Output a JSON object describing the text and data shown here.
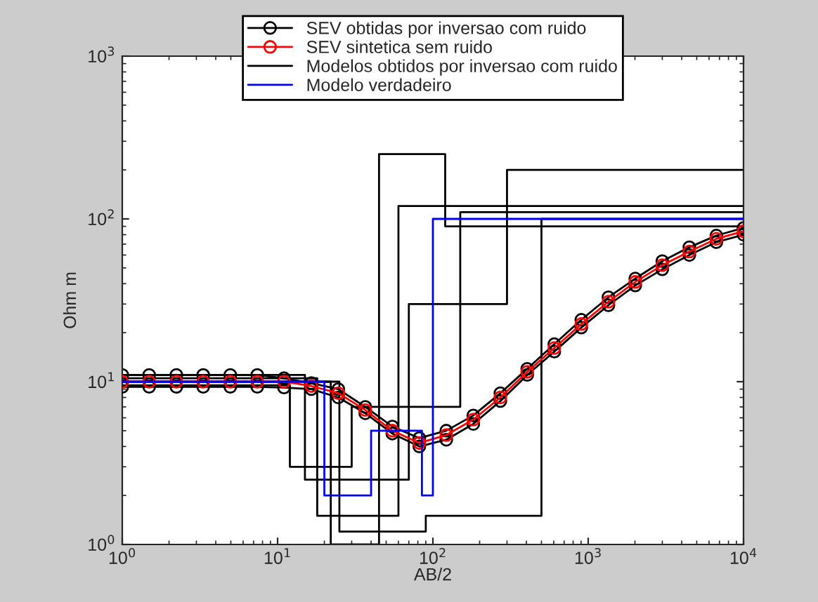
{
  "chart_data": {
    "type": "line",
    "xlabel": "AB/2",
    "ylabel": "Ohm m",
    "log": "xy",
    "grid": false,
    "legend": "top",
    "xlim": [
      1,
      10000
    ],
    "ylim": [
      1,
      1000
    ],
    "xticks": [
      {
        "value": 1,
        "label": "10$^{0}$"
      },
      {
        "value": 10,
        "label": "10$^{1}$"
      },
      {
        "value": 100,
        "label": "10$^{2}$"
      },
      {
        "value": 1000,
        "label": "10$^{3}$"
      },
      {
        "value": 10000,
        "label": "10$^{4}$"
      }
    ],
    "yticks": [
      {
        "value": 1,
        "label": "10$^{0}$"
      },
      {
        "value": 10,
        "label": "10$^{1}$"
      },
      {
        "value": 100,
        "label": "10$^{2}$"
      },
      {
        "value": 1000,
        "label": "10$^{3}$"
      }
    ],
    "series": [
      {
        "name": "Modelos obtidos por inversao com ruido",
        "type": "step",
        "color": "#000000",
        "x": [
          1,
          18,
          60,
          10000
        ],
        "values": [
          10.5,
          1.5,
          120,
          120
        ]
      },
      {
        "type": "step",
        "color": "#000000",
        "x": [
          1,
          12,
          30,
          150,
          10000
        ],
        "values": [
          9.5,
          3,
          7,
          110,
          110
        ]
      },
      {
        "type": "step",
        "color": "#000000",
        "x": [
          1,
          22,
          45,
          120,
          10000
        ],
        "values": [
          10,
          1,
          250,
          90,
          90
        ]
      },
      {
        "type": "step",
        "color": "#000000",
        "x": [
          1,
          15,
          70,
          300,
          10000
        ],
        "values": [
          11,
          2.5,
          30,
          200,
          200
        ]
      },
      {
        "type": "step",
        "color": "#000000",
        "x": [
          1,
          25,
          90,
          500,
          10000
        ],
        "values": [
          10,
          1.2,
          1.5,
          100,
          100
        ]
      },
      {
        "name": "SEV obtidas por inversao com ruido",
        "marker": "circle",
        "color": "#000000",
        "x": [
          1,
          1.49,
          2.23,
          3.32,
          4.96,
          7.4,
          11.0,
          16.5,
          24.6,
          36.7,
          54.8,
          81.8,
          122,
          182,
          272,
          405,
          605,
          903,
          1350,
          2010,
          3000,
          4480,
          6690,
          10000
        ],
        "values": [
          11,
          11,
          11,
          11,
          11,
          11,
          10.5,
          9.8,
          9,
          7,
          5.3,
          4.5,
          5,
          6.2,
          8.5,
          12,
          17,
          24,
          33,
          43,
          55,
          67,
          79,
          88
        ]
      },
      {
        "marker": "circle",
        "color": "#000000",
        "x": [
          1,
          1.49,
          2.23,
          3.32,
          4.96,
          7.4,
          11.0,
          16.5,
          24.6,
          36.7,
          54.8,
          81.8,
          122,
          182,
          272,
          405,
          605,
          903,
          1350,
          2010,
          3000,
          4480,
          6690,
          10000
        ],
        "values": [
          9.3,
          9.3,
          9.3,
          9.3,
          9.3,
          9.3,
          9.2,
          9,
          8,
          6.4,
          4.8,
          4,
          4.4,
          5.5,
          7.6,
          11,
          15.3,
          21.5,
          29.5,
          39,
          49,
          60,
          72,
          80
        ]
      },
      {
        "name": "SEV sintetica sem ruido",
        "marker": "circle",
        "color": "#ff0000",
        "x": [
          1,
          1.49,
          2.23,
          3.32,
          4.96,
          7.4,
          11.0,
          16.5,
          24.6,
          36.7,
          54.8,
          81.8,
          122,
          182,
          272,
          405,
          605,
          903,
          1350,
          2010,
          3000,
          4480,
          6690,
          10000
        ],
        "values": [
          10,
          10,
          10,
          10,
          10,
          10,
          10,
          9.4,
          8.5,
          6.7,
          5.0,
          4.2,
          4.7,
          5.85,
          8.0,
          11.5,
          16.1,
          22.6,
          31,
          41,
          52,
          63,
          75.5,
          84
        ]
      },
      {
        "name": "Modelo verdadeiro",
        "type": "step",
        "color": "#0000ff",
        "x": [
          1,
          20,
          40,
          85,
          100,
          10000
        ],
        "values": [
          10,
          2,
          5,
          2,
          100,
          100
        ]
      }
    ]
  }
}
